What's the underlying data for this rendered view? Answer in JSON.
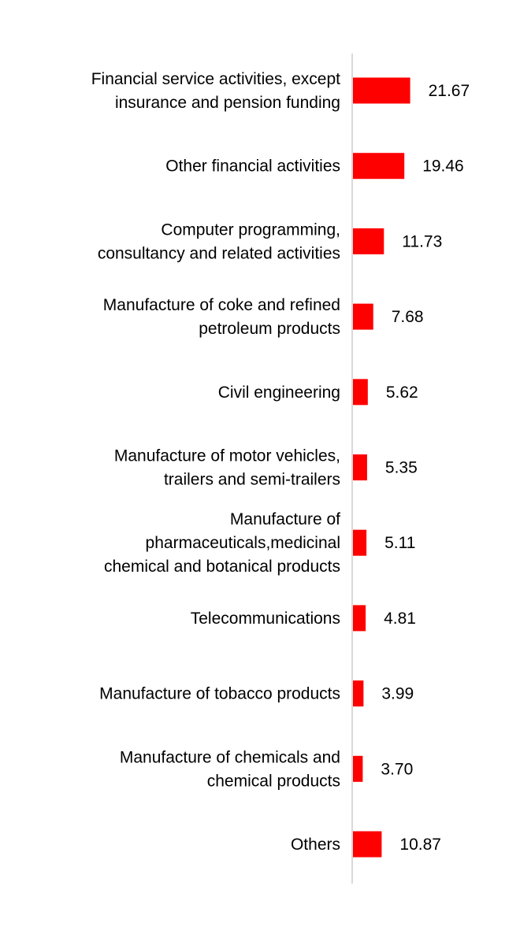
{
  "chart_data": {
    "type": "bar",
    "orientation": "horizontal",
    "categories": [
      [
        "Financial service activities, except",
        "insurance and pension funding"
      ],
      [
        "Other financial activities"
      ],
      [
        "Computer programming,",
        "consultancy and related activities"
      ],
      [
        "Manufacture of coke and refined",
        "petroleum products"
      ],
      [
        "Civil engineering"
      ],
      [
        "Manufacture of motor vehicles,",
        "trailers and semi-trailers"
      ],
      [
        "Manufacture of",
        "pharmaceuticals,medicinal",
        "chemical and botanical products"
      ],
      [
        "Telecommunications"
      ],
      [
        "Manufacture of tobacco products"
      ],
      [
        "Manufacture of chemicals and",
        "chemical products"
      ],
      [
        "Others"
      ]
    ],
    "values": [
      21.67,
      19.46,
      11.73,
      7.68,
      5.62,
      5.35,
      5.11,
      4.81,
      3.99,
      3.7,
      10.87
    ],
    "value_labels": [
      "21.67",
      "19.46",
      "11.73",
      "7.68",
      "5.62",
      "5.35",
      "5.11",
      "4.81",
      "3.99",
      "3.70",
      "10.87"
    ],
    "bar_color": "#ff0000",
    "axis_color": "#d9d9d9",
    "grid": false,
    "legend": "none",
    "title": "",
    "xlabel": "",
    "ylabel": ""
  }
}
